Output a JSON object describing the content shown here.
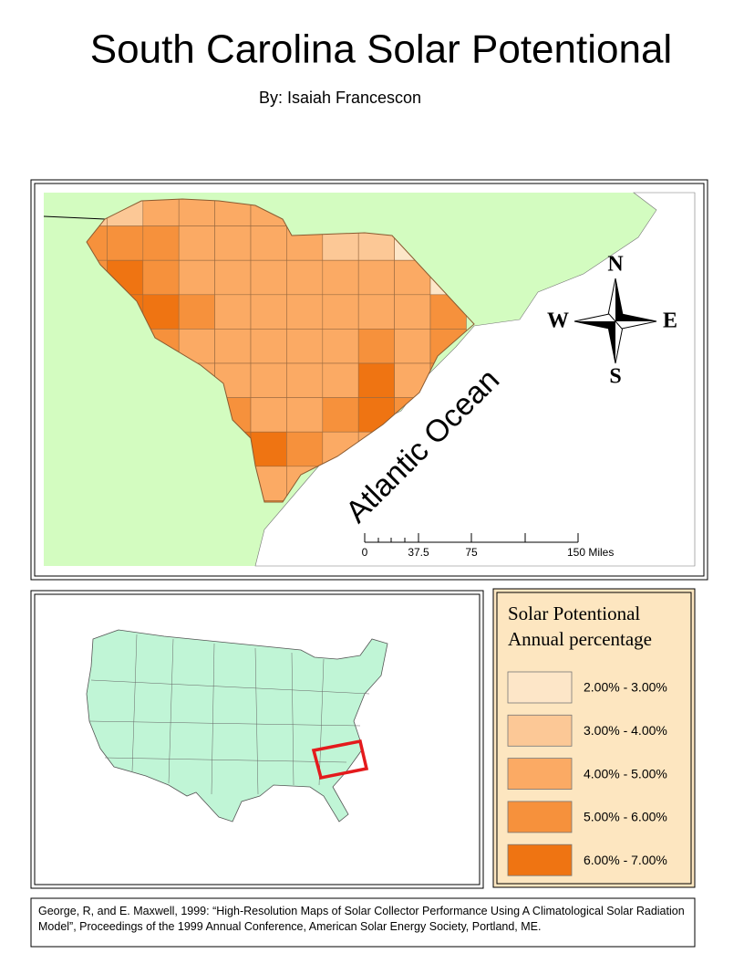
{
  "header": {
    "title": "South Carolina Solar Potentional",
    "author": "By: Isaiah Francescon"
  },
  "main_map": {
    "ocean_label": "Atlantic Ocean",
    "compass": {
      "n": "N",
      "e": "E",
      "s": "S",
      "w": "W"
    },
    "scale_bar": {
      "labels": [
        "0",
        "37.5",
        "75",
        "150 Miles"
      ]
    }
  },
  "legend": {
    "title_lines": [
      "Solar Potentional",
      "Annual percentage"
    ],
    "items": [
      {
        "label": "2.00% - 3.00%",
        "color": "#fde6c8"
      },
      {
        "label": "3.00% - 4.00%",
        "color": "#fcc896"
      },
      {
        "label": "4.00% - 5.00%",
        "color": "#fbaa64"
      },
      {
        "label": "5.00% - 6.00%",
        "color": "#f6913c"
      },
      {
        "label": "6.00% - 7.00%",
        "color": "#ef7412"
      }
    ]
  },
  "citation": "George, R, and E. Maxwell, 1999:   “High-Resolution Maps of Solar Collector Performance Using A Climatological Solar Radiation Model”, Proceedings of the 1999 Annual Conference, American Solar Energy Society, Portland, ME."
}
